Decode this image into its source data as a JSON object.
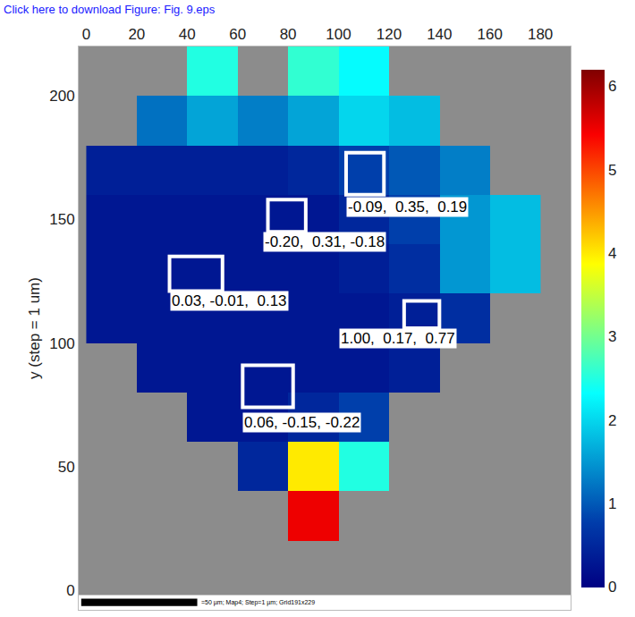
{
  "chart_data": {
    "type": "heatmap",
    "header_text": "Click here to download Figure: Fig. 9.eps",
    "y_label": "y (step = 1 um)",
    "scale_bar_text": "=50 µm; Map4; Step=1 µm; Grid191x229",
    "xlim": [
      -3,
      192
    ],
    "xticks": [
      0,
      20,
      40,
      60,
      80,
      100,
      120,
      140,
      160,
      180
    ],
    "ylim": [
      -8,
      220
    ],
    "yticks": [
      0,
      50,
      100,
      150,
      200
    ],
    "grid": false,
    "color": "Jet",
    "x": [
      10,
      30,
      50,
      70,
      90,
      110,
      130,
      150,
      170
    ],
    "y": [
      10,
      30,
      50,
      70,
      90,
      110,
      130,
      150,
      170,
      190,
      210
    ],
    "z": [
      [
        null,
        null,
        null,
        null,
        null,
        null,
        null,
        null,
        null
      ],
      [
        null,
        null,
        null,
        null,
        5.5,
        null,
        null,
        null,
        null
      ],
      [
        null,
        null,
        null,
        0.5,
        4.0,
        2.5,
        null,
        null,
        null
      ],
      [
        null,
        null,
        0.3,
        0.3,
        0.5,
        0.8,
        null,
        null,
        null
      ],
      [
        null,
        0.3,
        0.3,
        0.3,
        0.3,
        0.3,
        0.4,
        null,
        null
      ],
      [
        0.3,
        0.3,
        0.3,
        0.3,
        0.3,
        0.3,
        0.4,
        0.6,
        null
      ],
      [
        0.3,
        0.3,
        0.3,
        0.3,
        0.3,
        0.4,
        0.6,
        1.5,
        1.8
      ],
      [
        0.3,
        0.3,
        0.3,
        0.3,
        0.3,
        0.5,
        0.8,
        1.5,
        1.8
      ],
      [
        0.4,
        0.4,
        0.4,
        0.4,
        0.5,
        0.8,
        1.0,
        1.3,
        null
      ],
      [
        null,
        1.2,
        1.6,
        1.3,
        1.6,
        2.0,
        1.8,
        null,
        null
      ],
      [
        null,
        null,
        2.5,
        null,
        2.6,
        2.3,
        null,
        null,
        null
      ]
    ],
    "colorbar": {
      "range": [
        0,
        6.2
      ],
      "ticks": [
        0,
        1,
        2,
        3,
        4,
        5,
        6
      ]
    },
    "regions": [
      {
        "x0": 103,
        "x1": 118,
        "y0": 160,
        "y1": 177,
        "label": "-0.09,  0.35,  0.19",
        "label_x": 103,
        "label_y": 155
      },
      {
        "x0": 72,
        "x1": 87,
        "y0": 145,
        "y1": 158,
        "label": "-0.20,  0.31, -0.18",
        "label_x": 70,
        "label_y": 141
      },
      {
        "x0": 33,
        "x1": 54,
        "y0": 121,
        "y1": 135,
        "label": "0.03, -0.01,  0.13",
        "label_x": 33,
        "label_y": 117
      },
      {
        "x0": 126,
        "x1": 140,
        "y0": 106,
        "y1": 117,
        "label": "1.00,  0.17,  0.77",
        "label_x": 100,
        "label_y": 102
      },
      {
        "x0": 62,
        "x1": 82,
        "y0": 74,
        "y1": 91,
        "label": "0.06, -0.15, -0.22",
        "label_x": 62,
        "label_y": 68
      }
    ]
  }
}
